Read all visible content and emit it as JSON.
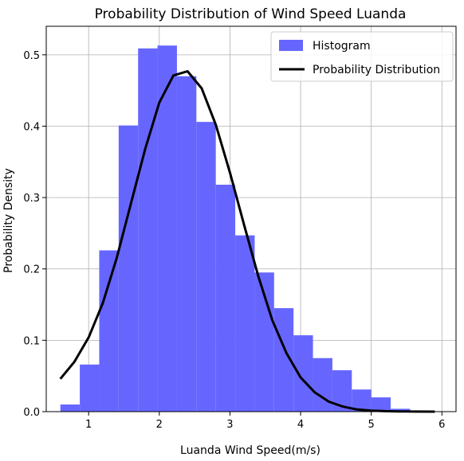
{
  "chart_data": {
    "type": "bar",
    "title": "Probability Distribution of Wind Speed Luanda",
    "xlabel": "Luanda Wind Speed(m/s)",
    "ylabel": "Probability Density",
    "xlim": [
      0.4,
      6.2
    ],
    "ylim": [
      0,
      0.54
    ],
    "xticks": [
      1,
      2,
      3,
      4,
      5,
      6
    ],
    "yticks": [
      0.0,
      0.1,
      0.2,
      0.3,
      0.4,
      0.5
    ],
    "xtick_labels": [
      "1",
      "2",
      "3",
      "4",
      "5",
      "6"
    ],
    "ytick_labels": [
      "0.0",
      "0.1",
      "0.2",
      "0.3",
      "0.4",
      "0.5"
    ],
    "grid": true,
    "legend_position": "top-right",
    "series": [
      {
        "name": "Histogram",
        "kind": "histogram",
        "color": "#6666ff",
        "bins": [
          {
            "x0": 0.6,
            "x1": 0.875,
            "value": 0.01
          },
          {
            "x0": 0.875,
            "x1": 1.15,
            "value": 0.066
          },
          {
            "x0": 1.15,
            "x1": 1.425,
            "value": 0.226
          },
          {
            "x0": 1.425,
            "x1": 1.7,
            "value": 0.401
          },
          {
            "x0": 1.7,
            "x1": 1.975,
            "value": 0.509
          },
          {
            "x0": 1.975,
            "x1": 2.25,
            "value": 0.513
          },
          {
            "x0": 2.25,
            "x1": 2.525,
            "value": 0.47
          },
          {
            "x0": 2.525,
            "x1": 2.8,
            "value": 0.406
          },
          {
            "x0": 2.8,
            "x1": 3.075,
            "value": 0.318
          },
          {
            "x0": 3.075,
            "x1": 3.35,
            "value": 0.247
          },
          {
            "x0": 3.35,
            "x1": 3.625,
            "value": 0.195
          },
          {
            "x0": 3.625,
            "x1": 3.9,
            "value": 0.145
          },
          {
            "x0": 3.9,
            "x1": 4.175,
            "value": 0.107
          },
          {
            "x0": 4.175,
            "x1": 4.45,
            "value": 0.075
          },
          {
            "x0": 4.45,
            "x1": 4.725,
            "value": 0.058
          },
          {
            "x0": 4.725,
            "x1": 5.0,
            "value": 0.031
          },
          {
            "x0": 5.0,
            "x1": 5.275,
            "value": 0.02
          },
          {
            "x0": 5.275,
            "x1": 5.55,
            "value": 0.004
          }
        ]
      },
      {
        "name": "Probability Distribution",
        "kind": "line",
        "color": "#000000",
        "x": [
          0.6,
          0.8,
          1.0,
          1.2,
          1.4,
          1.6,
          1.8,
          2.0,
          2.2,
          2.4,
          2.6,
          2.8,
          3.0,
          3.2,
          3.4,
          3.6,
          3.8,
          4.0,
          4.2,
          4.4,
          4.6,
          4.8,
          5.0,
          5.2,
          5.4,
          5.6,
          5.9
        ],
        "y": [
          0.046,
          0.07,
          0.104,
          0.152,
          0.216,
          0.292,
          0.368,
          0.433,
          0.471,
          0.477,
          0.453,
          0.402,
          0.335,
          0.262,
          0.19,
          0.128,
          0.082,
          0.048,
          0.027,
          0.014,
          0.007,
          0.003,
          0.0015,
          0.0007,
          0.0003,
          0.0001,
          0.0
        ]
      }
    ]
  }
}
